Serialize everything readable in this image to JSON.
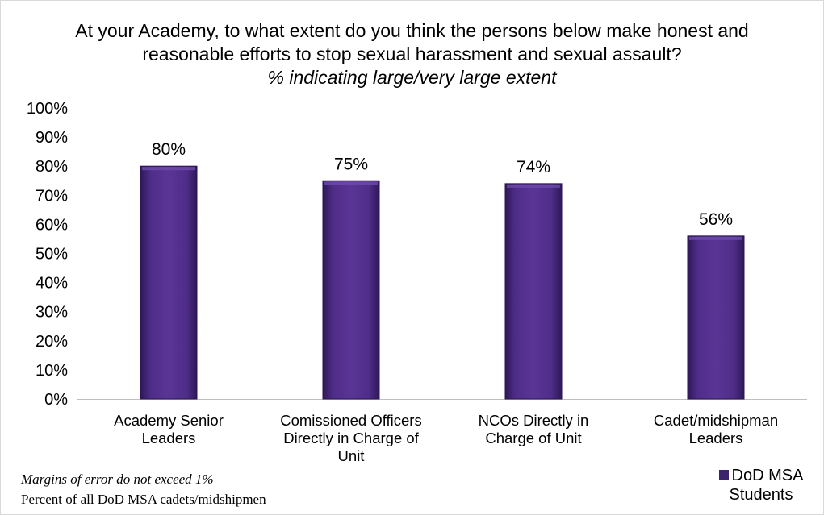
{
  "chart_data": {
    "type": "bar",
    "title": "At your Academy, to what extent do you think the persons below make honest and reasonable efforts to stop sexual harassment and sexual assault?",
    "subtitle": "% indicating large/very large extent",
    "categories": [
      [
        "Academy Senior",
        "Leaders"
      ],
      [
        "Comissioned Officers",
        "Directly in Charge of",
        "Unit"
      ],
      [
        "NCOs Directly in",
        "Charge of Unit"
      ],
      [
        "Cadet/midshipman",
        "Leaders"
      ]
    ],
    "series": [
      {
        "name": "DoD MSA Students",
        "values": [
          80,
          75,
          74,
          56
        ]
      }
    ],
    "data_labels": [
      "80%",
      "75%",
      "74%",
      "56%"
    ],
    "y_ticks": [
      "0%",
      "10%",
      "20%",
      "30%",
      "40%",
      "50%",
      "60%",
      "70%",
      "80%",
      "90%",
      "100%"
    ],
    "ylim": [
      0,
      100
    ],
    "grid": false,
    "legend_position": "bottom-right",
    "bar_color": "#4b2a82"
  },
  "title_lines": [
    "At your Academy, to what extent do you think the persons below make honest and",
    "reasonable efforts to stop sexual harassment and sexual assault?"
  ],
  "subtitle": "% indicating large/very large extent",
  "footnotes": {
    "margin": "Margins of error  do not exceed 1%",
    "base": "Percent of all DoD MSA cadets/midshipmen"
  },
  "legend": {
    "line1": "DoD MSA",
    "line2": "Students"
  }
}
